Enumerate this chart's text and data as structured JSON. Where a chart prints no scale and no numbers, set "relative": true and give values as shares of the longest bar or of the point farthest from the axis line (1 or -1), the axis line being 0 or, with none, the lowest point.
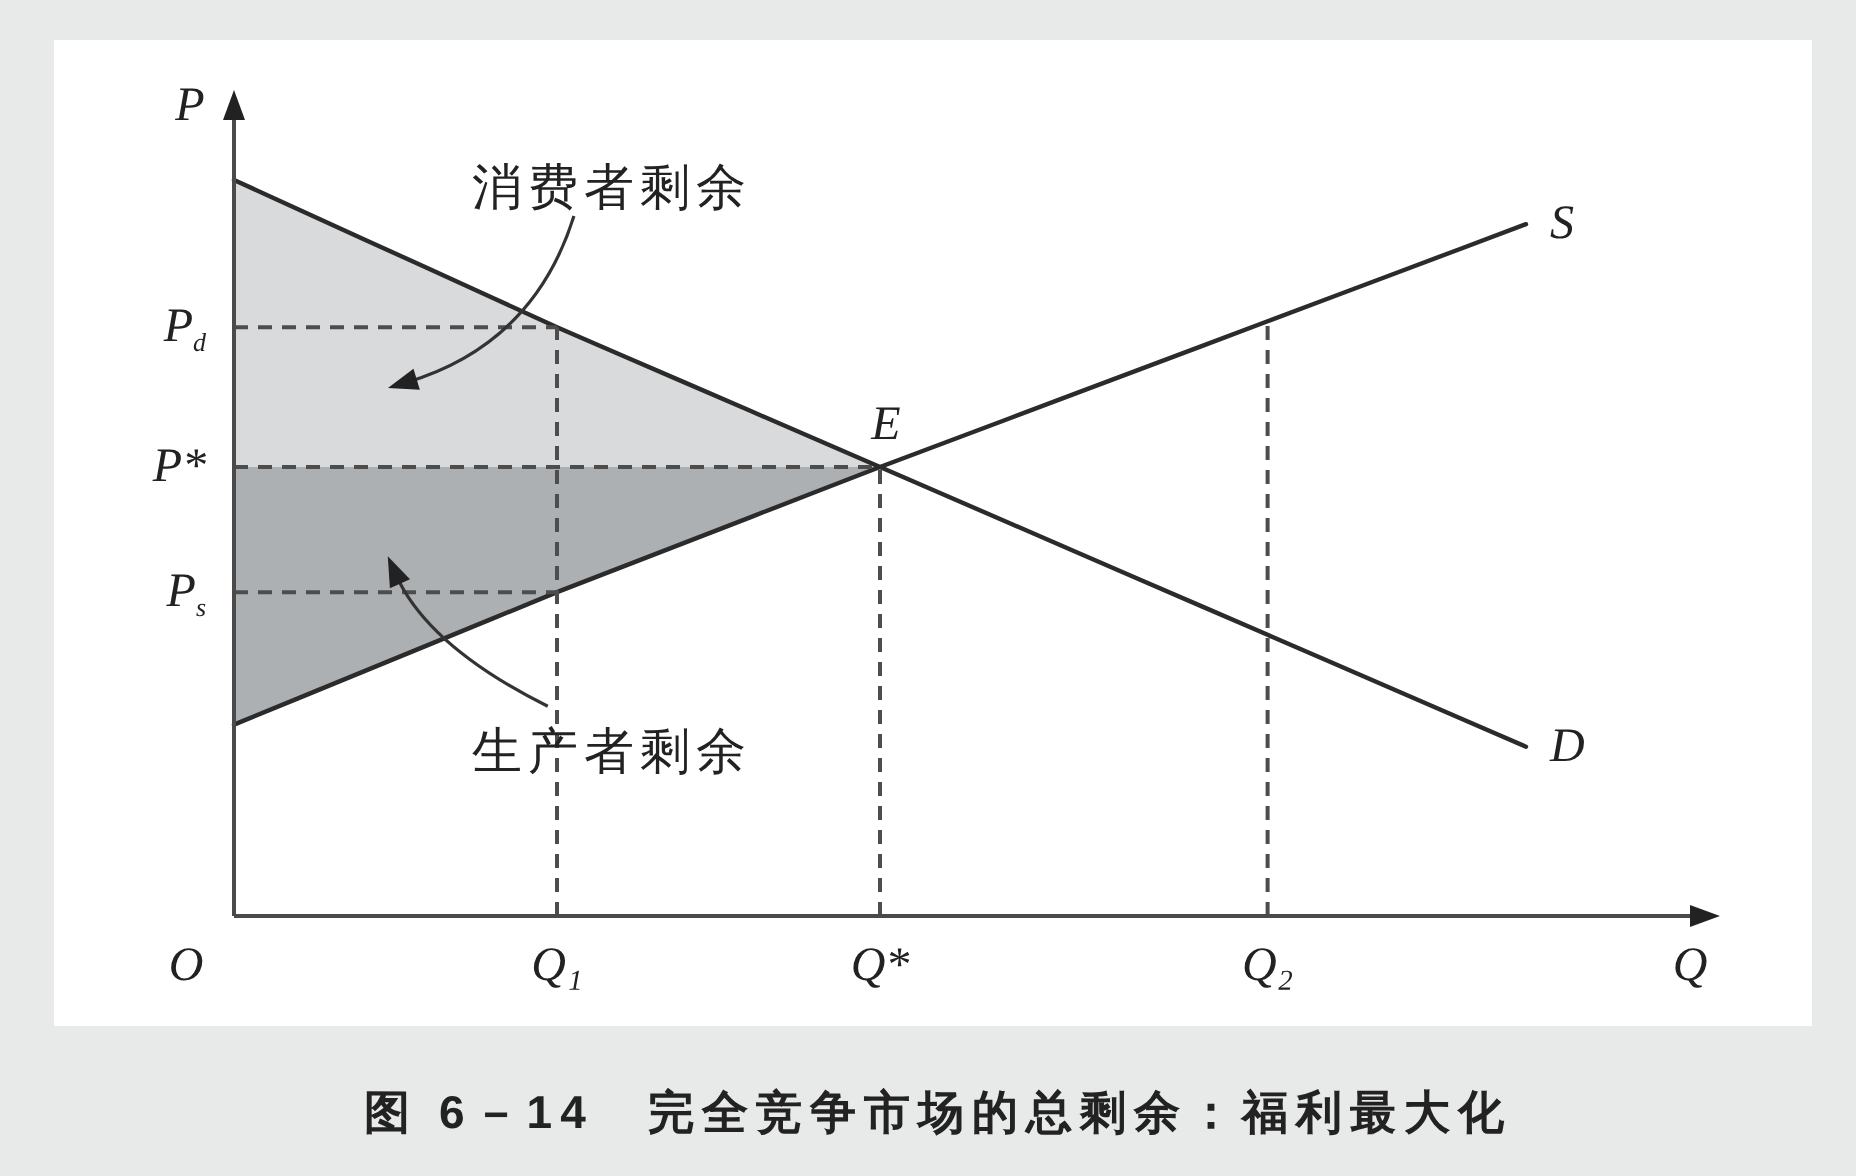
{
  "chart_data": {
    "type": "line",
    "relative": true,
    "title": "图 6－14　完全竞争市场的总剩余：福利最大化",
    "xlabel": "Q",
    "ylabel": "P",
    "categories": [
      null,
      null,
      null,
      null,
      null,
      "Q₁",
      null,
      null,
      null,
      null,
      "Q*",
      null,
      null,
      null,
      null,
      null,
      "Q₂",
      null,
      null,
      null,
      null
    ],
    "series": [
      {
        "type": "line",
        "name": "S",
        "color": "#2b2b2b",
        "values": [
          0.26,
          0.296,
          0.332,
          0.368,
          0.404,
          0.44,
          0.474,
          0.508,
          0.542,
          0.576,
          0.61,
          0.643,
          0.676,
          0.709,
          0.742,
          0.775,
          0.808,
          0.841,
          0.874,
          0.907,
          0.94
        ]
      },
      {
        "type": "line",
        "name": "D",
        "color": "#2b2b2b",
        "values": [
          1,
          0.96,
          0.92,
          0.88,
          0.84,
          0.8,
          0.762,
          0.724,
          0.686,
          0.648,
          0.61,
          0.572,
          0.534,
          0.496,
          0.458,
          0.42,
          0.382,
          0.344,
          0.306,
          0.268,
          0.23
        ]
      }
    ],
    "ref_lines": [
      {
        "axis": "y",
        "value": 0.8,
        "label": "P$_{d}$",
        "color": "#4d4d4d",
        "line_style": "dashed"
      },
      {
        "axis": "y",
        "value": 0.61,
        "label": "P*",
        "color": "#4d4d4d",
        "line_style": "dashed"
      },
      {
        "axis": "y",
        "value": 0.44,
        "label": "P$_{s}$",
        "color": "#4d4d4d",
        "line_style": "dashed"
      },
      {
        "axis": "x",
        "value": "Q₁",
        "color": "#4d4d4d",
        "line_style": "dashed"
      },
      {
        "axis": "x",
        "value": "Q*",
        "color": "#4d4d4d",
        "line_style": "dashed"
      },
      {
        "axis": "x",
        "value": "Q₂",
        "color": "#4d4d4d",
        "line_style": "dashed"
      }
    ],
    "annotations": [
      "消费者剩余",
      "生产者剩余",
      {
        "text": "E",
        "x": "Q*",
        "y": 0.61
      },
      "O"
    ]
  }
}
